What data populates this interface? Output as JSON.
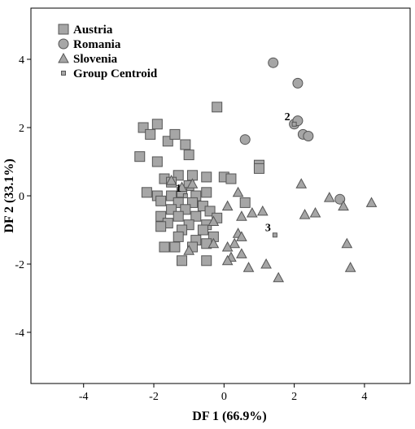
{
  "chart_data": {
    "type": "scatter",
    "xlabel": "DF 1 (66.9%)",
    "ylabel": "DF 2 (33.1%)",
    "xlim": [
      -5.5,
      5.3
    ],
    "ylim": [
      -5.5,
      5.5
    ],
    "xticks": [
      -4,
      -2,
      0,
      2,
      4
    ],
    "yticks": [
      -4,
      -2,
      0,
      2,
      4
    ],
    "grid": false,
    "legend_position": "top-left",
    "marker_fill": "#a6a6a6",
    "marker_stroke": "#555555",
    "series": [
      {
        "name": "Austria",
        "marker": "square",
        "points": [
          [
            -0.2,
            2.6
          ],
          [
            -2.3,
            2.0
          ],
          [
            -1.9,
            2.1
          ],
          [
            -2.1,
            1.8
          ],
          [
            -1.6,
            1.6
          ],
          [
            -1.4,
            1.8
          ],
          [
            -1.1,
            1.5
          ],
          [
            -2.4,
            1.15
          ],
          [
            -1.9,
            1.0
          ],
          [
            -1.0,
            1.2
          ],
          [
            1.0,
            0.9
          ],
          [
            1.0,
            0.8
          ],
          [
            -1.7,
            0.5
          ],
          [
            -1.3,
            0.6
          ],
          [
            -0.9,
            0.6
          ],
          [
            -0.5,
            0.55
          ],
          [
            0.0,
            0.55
          ],
          [
            0.2,
            0.5
          ],
          [
            -1.5,
            0.4
          ],
          [
            -1.0,
            0.3
          ],
          [
            -2.2,
            0.1
          ],
          [
            -1.9,
            0.0
          ],
          [
            -1.5,
            0.0
          ],
          [
            -1.2,
            0.1
          ],
          [
            -0.8,
            0.0
          ],
          [
            -0.5,
            0.1
          ],
          [
            -1.8,
            -0.15
          ],
          [
            -1.3,
            -0.2
          ],
          [
            -0.9,
            -0.2
          ],
          [
            -0.6,
            -0.3
          ],
          [
            0.6,
            -0.2
          ],
          [
            -1.5,
            -0.4
          ],
          [
            -1.1,
            -0.4
          ],
          [
            -0.4,
            -0.45
          ],
          [
            -1.8,
            -0.6
          ],
          [
            -1.3,
            -0.6
          ],
          [
            -0.8,
            -0.6
          ],
          [
            -0.2,
            -0.65
          ],
          [
            -1.6,
            -0.8
          ],
          [
            -1.0,
            -0.85
          ],
          [
            -0.5,
            -0.85
          ],
          [
            -1.8,
            -0.9
          ],
          [
            -1.2,
            -1.0
          ],
          [
            -0.6,
            -1.0
          ],
          [
            -0.3,
            -1.2
          ],
          [
            -1.3,
            -1.2
          ],
          [
            -0.8,
            -1.3
          ],
          [
            -1.4,
            -1.5
          ],
          [
            -0.9,
            -1.5
          ],
          [
            -0.5,
            -1.4
          ],
          [
            -1.7,
            -1.5
          ],
          [
            -1.2,
            -1.9
          ],
          [
            -0.5,
            -1.9
          ]
        ]
      },
      {
        "name": "Romania",
        "marker": "circle",
        "points": [
          [
            1.4,
            3.9
          ],
          [
            2.1,
            3.3
          ],
          [
            2.0,
            2.1
          ],
          [
            2.1,
            2.2
          ],
          [
            2.25,
            1.8
          ],
          [
            2.4,
            1.75
          ],
          [
            0.6,
            1.65
          ],
          [
            3.3,
            -0.1
          ]
        ]
      },
      {
        "name": "Slovenia",
        "marker": "triangle",
        "points": [
          [
            -1.5,
            0.45
          ],
          [
            -1.2,
            0.25
          ],
          [
            -0.9,
            0.35
          ],
          [
            0.4,
            0.1
          ],
          [
            2.2,
            0.35
          ],
          [
            0.1,
            -0.3
          ],
          [
            0.8,
            -0.5
          ],
          [
            1.1,
            -0.45
          ],
          [
            2.3,
            -0.55
          ],
          [
            2.6,
            -0.5
          ],
          [
            3.0,
            -0.05
          ],
          [
            3.4,
            -0.3
          ],
          [
            4.2,
            -0.2
          ],
          [
            -0.3,
            -0.75
          ],
          [
            0.5,
            -0.6
          ],
          [
            0.4,
            -1.1
          ],
          [
            0.5,
            -1.2
          ],
          [
            0.3,
            -1.4
          ],
          [
            0.1,
            -1.5
          ],
          [
            -0.3,
            -1.4
          ],
          [
            0.5,
            -1.7
          ],
          [
            0.2,
            -1.8
          ],
          [
            0.1,
            -1.9
          ],
          [
            0.7,
            -2.1
          ],
          [
            1.2,
            -2.0
          ],
          [
            1.55,
            -2.4
          ],
          [
            3.5,
            -1.4
          ],
          [
            3.6,
            -2.1
          ],
          [
            -1.0,
            -1.6
          ]
        ]
      }
    ],
    "centroids": {
      "name": "Group Centroid",
      "points": [
        {
          "label": "1",
          "x": -1.1,
          "y": 0.0
        },
        {
          "label": "2",
          "x": 2.0,
          "y": 2.1
        },
        {
          "label": "3",
          "x": 1.45,
          "y": -1.15
        }
      ]
    }
  }
}
